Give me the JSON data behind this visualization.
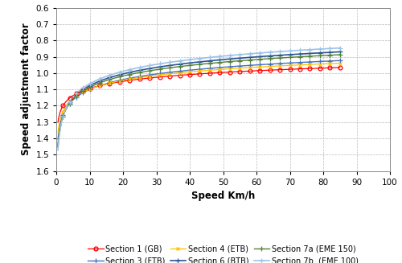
{
  "xlabel": "Speed Km/h",
  "ylabel": "Speed adjustment factor",
  "xlim": [
    0,
    100
  ],
  "ylim": [
    1.6,
    0.6
  ],
  "yticks": [
    0.6,
    0.7,
    0.8,
    0.9,
    1.0,
    1.1,
    1.2,
    1.3,
    1.4,
    1.5,
    1.6
  ],
  "xticks": [
    0,
    10,
    20,
    30,
    40,
    50,
    60,
    70,
    80,
    90,
    100
  ],
  "series": [
    {
      "label": "Section 1 (GB)",
      "color": "#FF0000",
      "marker": "o",
      "markersize": 3.5,
      "linewidth": 0.9,
      "v_ref": 46.5,
      "n": 0.058
    },
    {
      "label": "Section 3 (FTB)",
      "color": "#4472C4",
      "marker": "+",
      "markersize": 4.5,
      "linewidth": 1.0,
      "v_ref": 32.0,
      "n": 0.082
    },
    {
      "label": "Section 4 (ETB)",
      "color": "#FFC000",
      "marker": "x",
      "markersize": 3.5,
      "linewidth": 0.9,
      "v_ref": 36.0,
      "n": 0.073
    },
    {
      "label": "Section 6 (BTB)",
      "color": "#2F5496",
      "marker": "+",
      "markersize": 4.5,
      "linewidth": 1.2,
      "v_ref": 21.0,
      "n": 0.1
    },
    {
      "label": "Section 7a (EME 150)",
      "color": "#548235",
      "marker": "+",
      "markersize": 4.5,
      "linewidth": 1.0,
      "v_ref": 24.0,
      "n": 0.095
    },
    {
      "label": "Section 7b  (EME 100)",
      "color": "#9DC3E6",
      "marker": "+",
      "markersize": 4.5,
      "linewidth": 1.2,
      "v_ref": 18.0,
      "n": 0.108
    }
  ],
  "marker_positions": [
    2,
    4,
    6,
    8,
    10,
    13,
    16,
    19,
    22,
    25,
    28,
    31,
    34,
    37,
    40,
    43,
    46,
    49,
    52,
    55,
    58,
    61,
    64,
    67,
    70,
    73,
    76,
    79,
    82,
    85
  ],
  "background_color": "#FFFFFF",
  "grid_color": "#BBBBBB",
  "legend_order": [
    0,
    1,
    2,
    3,
    4,
    5
  ]
}
